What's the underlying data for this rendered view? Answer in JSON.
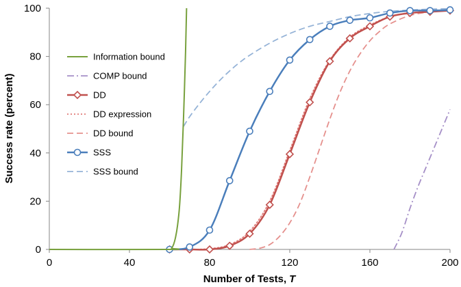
{
  "chart_data": {
    "type": "line",
    "title": "",
    "xlabel": "Number of Tests,",
    "xlabel_var": "T",
    "ylabel": "Success rate (percent)",
    "xlim": [
      0,
      200
    ],
    "ylim": [
      0,
      100
    ],
    "xticks": [
      0,
      40,
      80,
      120,
      160,
      200
    ],
    "yticks": [
      0,
      20,
      40,
      60,
      80,
      100
    ],
    "grid": false,
    "legend_position": "left",
    "series": [
      {
        "name": "Information bound",
        "color": "#77a03c",
        "style": "solid",
        "marker": "none",
        "x": [
          0,
          60,
          61,
          62,
          63,
          64,
          65,
          66,
          67,
          68,
          68.5
        ],
        "y": [
          0,
          0,
          0.5,
          2,
          5,
          10,
          18,
          33,
          55,
          82,
          100
        ]
      },
      {
        "name": "COMP bound",
        "color": "#a58fc7",
        "style": "dashdot",
        "marker": "none",
        "x": [
          172,
          176,
          180,
          184,
          188,
          192,
          196,
          200
        ],
        "y": [
          0,
          7,
          17,
          26,
          34,
          42,
          50,
          58
        ]
      },
      {
        "name": "DD",
        "color": "#c0504d",
        "style": "solid",
        "marker": "diamond",
        "x": [
          60,
          70,
          80,
          90,
          100,
          110,
          120,
          130,
          140,
          150,
          160,
          170,
          180,
          190,
          200
        ],
        "y": [
          0,
          0,
          0,
          1.5,
          6.5,
          18.5,
          39.5,
          61,
          78,
          87.5,
          92.5,
          96.5,
          98,
          98.5,
          99
        ]
      },
      {
        "name": "DD expression",
        "color": "#e07b78",
        "style": "dotted",
        "marker": "none",
        "x": [
          60,
          70,
          80,
          90,
          100,
          110,
          120,
          130,
          140,
          150,
          160,
          170,
          180,
          190,
          200
        ],
        "y": [
          0,
          0,
          0.3,
          2,
          7.5,
          20,
          41,
          62.5,
          78.5,
          88,
          93,
          96.5,
          98,
          98.7,
          99.2
        ]
      },
      {
        "name": "DD bound",
        "color": "#e5908d",
        "style": "dashed",
        "marker": "none",
        "x": [
          100,
          105,
          110,
          115,
          120,
          125,
          130,
          135,
          140,
          145,
          150,
          155,
          160,
          165,
          170,
          180,
          190,
          200
        ],
        "y": [
          0,
          0.5,
          2,
          5.5,
          11,
          19,
          30,
          42,
          54,
          65,
          74,
          81,
          86.5,
          90.5,
          93.5,
          97,
          98.5,
          99.3
        ]
      },
      {
        "name": "SSS",
        "color": "#4a7ebb",
        "style": "solid",
        "marker": "circle",
        "x": [
          60,
          70,
          80,
          90,
          100,
          110,
          120,
          130,
          140,
          150,
          160,
          170,
          180,
          190,
          200
        ],
        "y": [
          0,
          1,
          8,
          28.5,
          49,
          65.5,
          78.5,
          87,
          92.5,
          95,
          96,
          98,
          99,
          99,
          99.3
        ]
      },
      {
        "name": "SSS bound",
        "color": "#95b3d7",
        "style": "dashed",
        "marker": "none",
        "x": [
          67,
          70,
          75,
          80,
          85,
          90,
          95,
          100,
          110,
          120,
          130,
          140,
          150,
          160,
          170,
          180,
          190,
          200
        ],
        "y": [
          51,
          55,
          60.5,
          65.5,
          70,
          74,
          77.5,
          80.5,
          85.5,
          89.5,
          92.5,
          94.5,
          96.5,
          97.8,
          98.7,
          99.2,
          99.6,
          99.8
        ]
      }
    ]
  }
}
